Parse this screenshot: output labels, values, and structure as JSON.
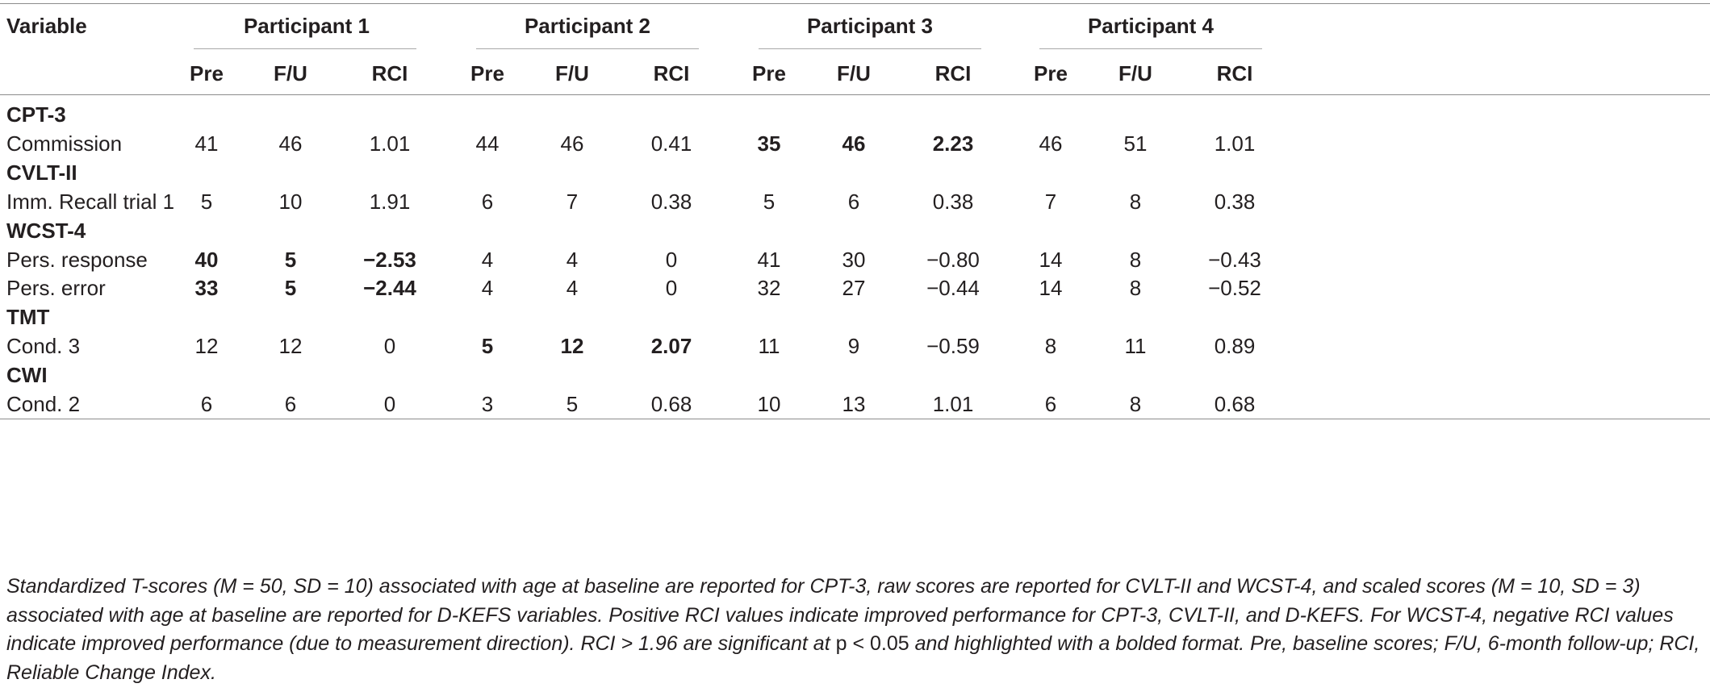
{
  "header": {
    "variable": "Variable",
    "participants": [
      "Participant 1",
      "Participant 2",
      "Participant 3",
      "Participant 4"
    ],
    "subcols": [
      "Pre",
      "F/U",
      "RCI"
    ]
  },
  "rows": [
    {
      "type": "section",
      "label": "CPT-3"
    },
    {
      "type": "data",
      "label": "Commission",
      "values": [
        [
          "41",
          "46",
          "1.01"
        ],
        [
          "44",
          "46",
          "0.41"
        ],
        [
          "35",
          "46",
          "2.23"
        ],
        [
          "46",
          "51",
          "1.01"
        ]
      ],
      "bold": [
        false,
        false,
        true,
        false
      ]
    },
    {
      "type": "section",
      "label": "CVLT-II"
    },
    {
      "type": "data",
      "label": "Imm. Recall trial 1",
      "values": [
        [
          "5",
          "10",
          "1.91"
        ],
        [
          "6",
          "7",
          "0.38"
        ],
        [
          "5",
          "6",
          "0.38"
        ],
        [
          "7",
          "8",
          "0.38"
        ]
      ],
      "bold": [
        false,
        false,
        false,
        false
      ]
    },
    {
      "type": "section",
      "label": "WCST-4"
    },
    {
      "type": "data",
      "label": "Pers. response",
      "values": [
        [
          "40",
          "5",
          "−2.53"
        ],
        [
          "4",
          "4",
          "0"
        ],
        [
          "41",
          "30",
          "−0.80"
        ],
        [
          "14",
          "8",
          "−0.43"
        ]
      ],
      "bold": [
        true,
        false,
        false,
        false
      ]
    },
    {
      "type": "data",
      "label": "Pers. error",
      "values": [
        [
          "33",
          "5",
          "−2.44"
        ],
        [
          "4",
          "4",
          "0"
        ],
        [
          "32",
          "27",
          "−0.44"
        ],
        [
          "14",
          "8",
          "−0.52"
        ]
      ],
      "bold": [
        true,
        false,
        false,
        false
      ]
    },
    {
      "type": "section",
      "label": "TMT"
    },
    {
      "type": "data",
      "label": "Cond. 3",
      "values": [
        [
          "12",
          "12",
          "0"
        ],
        [
          "5",
          "12",
          "2.07"
        ],
        [
          "11",
          "9",
          "−0.59"
        ],
        [
          "8",
          "11",
          "0.89"
        ]
      ],
      "bold": [
        false,
        true,
        false,
        false
      ]
    },
    {
      "type": "section",
      "label": "CWI"
    },
    {
      "type": "data",
      "label": "Cond. 2",
      "values": [
        [
          "6",
          "6",
          "0"
        ],
        [
          "3",
          "5",
          "0.68"
        ],
        [
          "10",
          "13",
          "1.01"
        ],
        [
          "6",
          "8",
          "0.68"
        ]
      ],
      "bold": [
        false,
        false,
        false,
        false
      ]
    }
  ],
  "footnote": {
    "part1": "Standardized T-scores (M = 50, SD = 10) associated with age at baseline are reported for CPT-3, raw scores are reported for CVLT-II and WCST-4, and scaled scores (M = 10, SD = 3) associated with age at baseline are reported for D-KEFS variables. Positive RCI values indicate improved performance for CPT-3, CVLT-II, and D-KEFS. For WCST-4, negative RCI values indicate improved performance (due to measurement direction). RCI > 1.96 are significant at ",
    "p_label": "p",
    "part2": " < ",
    "p_value": "0.05",
    "part3": " and highlighted with a bolded format. Pre, baseline scores; F/U, 6-month follow-up; RCI, Reliable Change Index."
  }
}
